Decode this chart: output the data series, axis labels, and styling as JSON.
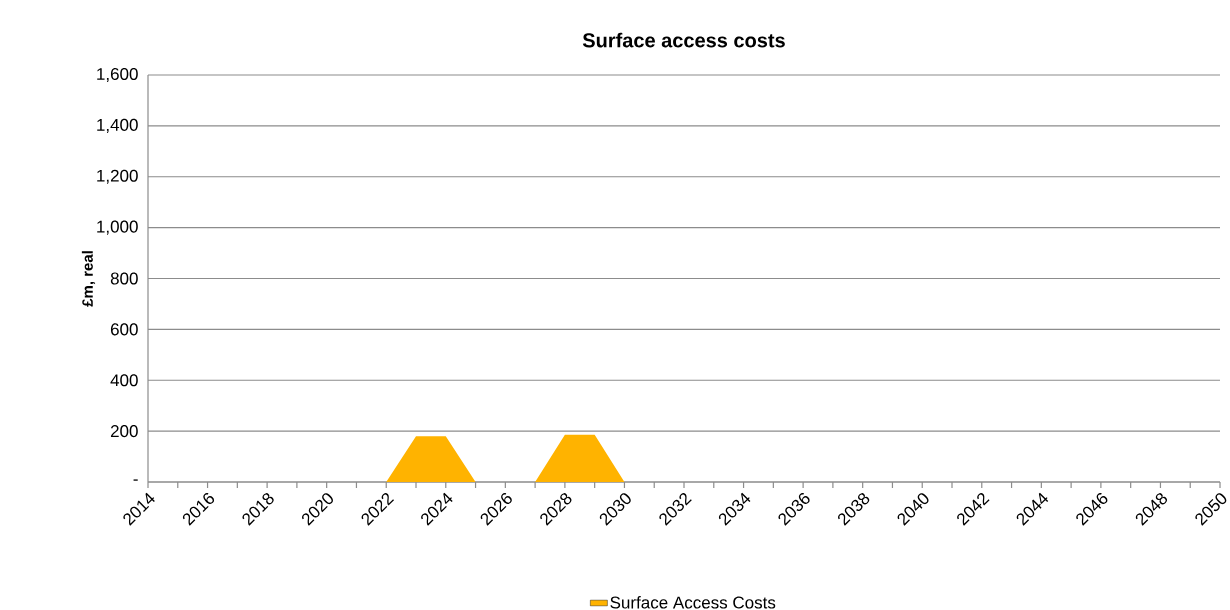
{
  "chart_data": {
    "type": "area",
    "title": "Surface access costs",
    "ylabel": "£m, real",
    "categories": [
      "2014",
      null,
      "2016",
      null,
      "2018",
      null,
      "2020",
      null,
      "2022",
      null,
      "2024",
      null,
      "2026",
      null,
      "2028",
      null,
      "2030",
      null,
      "2032",
      null,
      "2034",
      null,
      "2036",
      null,
      "2038",
      null,
      "2040",
      null,
      "2042",
      null,
      "2044",
      null,
      "2046",
      null,
      "2048",
      null,
      "2050"
    ],
    "series": [
      {
        "name": "Surface Access Costs",
        "color": "#ffb300",
        "values": [
          0,
          0,
          0,
          0,
          0,
          0,
          0,
          0,
          0,
          180,
          180,
          0,
          0,
          0,
          186,
          186,
          0,
          0,
          0,
          0,
          0,
          0,
          0,
          0,
          0,
          0,
          0,
          0,
          0,
          0,
          0,
          0,
          0,
          0,
          0,
          0,
          0
        ]
      }
    ],
    "ylim": [
      0,
      1600
    ],
    "yticks": [
      {
        "value": 0,
        "label": "-"
      },
      {
        "value": 200,
        "label": "200"
      },
      {
        "value": 400,
        "label": "400"
      },
      {
        "value": 600,
        "label": "600"
      },
      {
        "value": 800,
        "label": "800"
      },
      {
        "value": 1000,
        "label": "1,000"
      },
      {
        "value": 1200,
        "label": "1,200"
      },
      {
        "value": 1400,
        "label": "1,400"
      },
      {
        "value": 1600,
        "label": "1,600"
      }
    ],
    "grid": "y",
    "legend": "bottom"
  }
}
